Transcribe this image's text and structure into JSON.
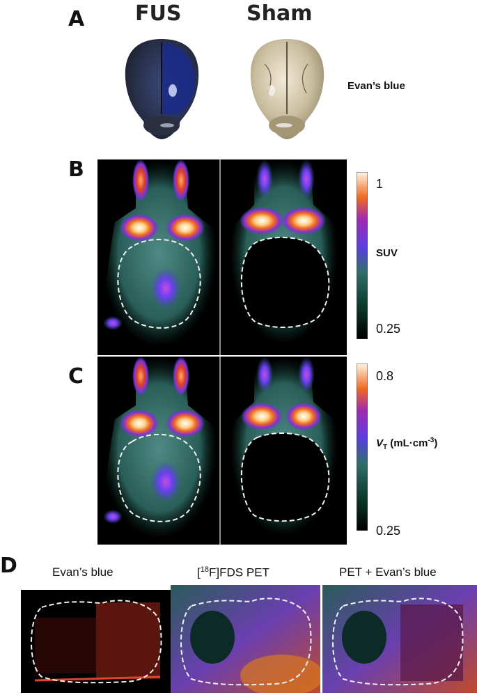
{
  "panel_a": {
    "letter": "A",
    "col_left": "FUS",
    "col_right": "Sham",
    "stain_label": "Evan’s blue"
  },
  "panel_b": {
    "letter": "B",
    "scale_max": "1",
    "scale_label": "SUV",
    "scale_min": "0.25"
  },
  "panel_c": {
    "letter": "C",
    "scale_max": "0.8",
    "scale_label_var": "V",
    "scale_label_sub": "T",
    "scale_label_unit": " (mL·cm",
    "scale_label_exp": "-3",
    "scale_label_close": ")",
    "scale_min": "0.25"
  },
  "panel_d": {
    "letter": "D",
    "col1": "Evan’s blue",
    "col2_pre": "[",
    "col2_sup": "18",
    "col2_post": "F]FDS PET",
    "col3": "PET + Evan’s blue"
  }
}
